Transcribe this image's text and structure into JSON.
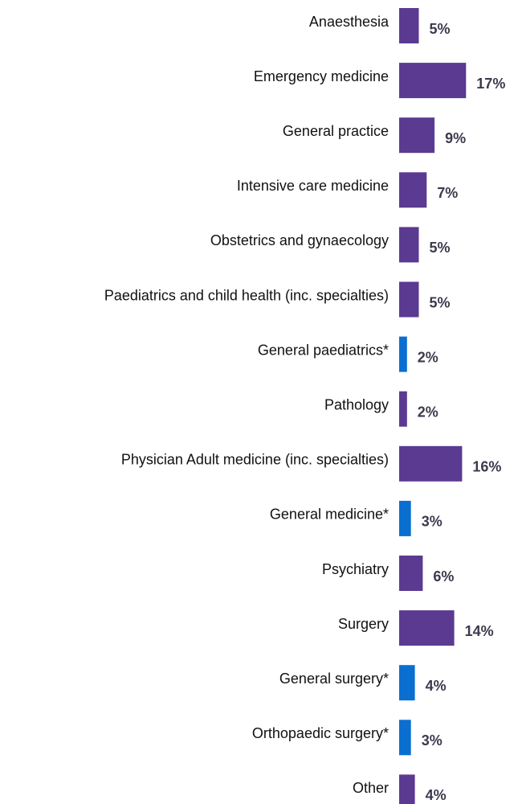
{
  "chart_data": {
    "type": "barh",
    "categories": [
      "Anaesthesia",
      "Emergency medicine",
      "General practice",
      "Intensive care medicine",
      "Obstetrics and gynaecology",
      "Paediatrics and child health (inc. specialties)",
      "General paediatrics*",
      "Pathology",
      "Physician Adult medicine (inc. specialties)",
      "General medicine*",
      "Psychiatry",
      "Surgery",
      "General surgery*",
      "Orthopaedic surgery*",
      "Other"
    ],
    "values": [
      5,
      17,
      9,
      7,
      5,
      5,
      2,
      2,
      16,
      3,
      6,
      14,
      4,
      3,
      4
    ],
    "value_labels": [
      "5%",
      "17%",
      "9%",
      "7%",
      "5%",
      "5%",
      "2%",
      "2%",
      "16%",
      "3%",
      "6%",
      "14%",
      "4%",
      "3%",
      "4%"
    ],
    "colors": [
      "#5b3a91",
      "#5b3a91",
      "#5b3a91",
      "#5b3a91",
      "#5b3a91",
      "#5b3a91",
      "#0a6fd0",
      "#5b3a91",
      "#5b3a91",
      "#0a6fd0",
      "#5b3a91",
      "#5b3a91",
      "#0a6fd0",
      "#0a6fd0",
      "#5b3a91"
    ]
  }
}
